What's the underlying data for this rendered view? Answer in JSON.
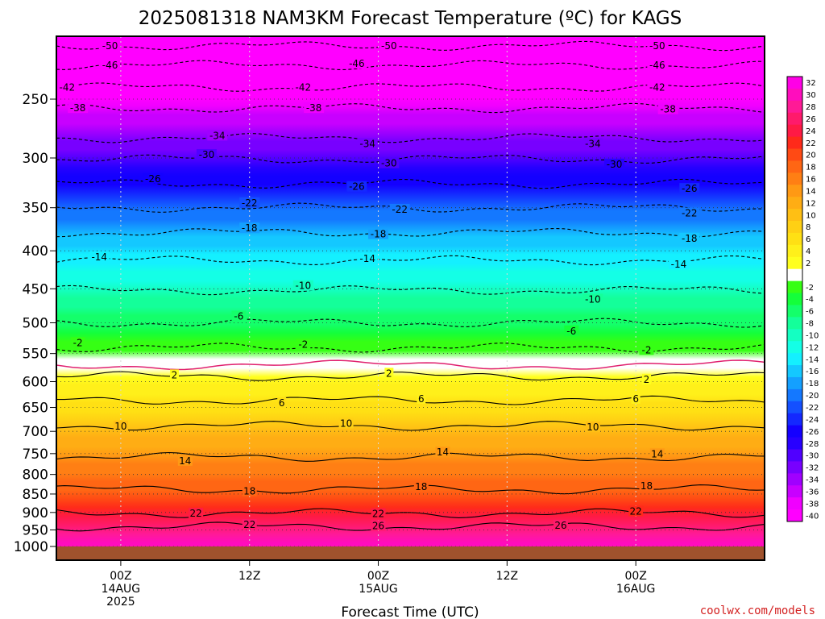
{
  "chart_data": {
    "type": "heatmap",
    "title": "2025081318 NAM3KM Forecast Temperature (ºC) for KAGS",
    "xlabel": "Forecast Time (UTC)",
    "ylabel": "",
    "y_scale": "log",
    "y_inverted": true,
    "y_ticks": [
      250,
      300,
      350,
      400,
      450,
      500,
      550,
      600,
      650,
      700,
      750,
      800,
      850,
      900,
      950,
      1000
    ],
    "y_range": [
      1000,
      200
    ],
    "x_start": "2025-08-13 18Z",
    "x_end": "2025-08-16 12Z",
    "x_ticks": [
      {
        "time": "2025-08-14 00Z",
        "lines": [
          "00Z",
          "14AUG",
          "2025"
        ]
      },
      {
        "time": "2025-08-14 12Z",
        "lines": [
          "12Z"
        ]
      },
      {
        "time": "2025-08-15 00Z",
        "lines": [
          "00Z",
          "15AUG"
        ]
      },
      {
        "time": "2025-08-15 12Z",
        "lines": [
          "12Z"
        ]
      },
      {
        "time": "2025-08-16 00Z",
        "lines": [
          "00Z",
          "16AUG"
        ]
      }
    ],
    "grid": true,
    "colorbar_ticks": [
      32,
      30,
      28,
      26,
      24,
      22,
      20,
      18,
      16,
      14,
      12,
      10,
      8,
      6,
      4,
      2,
      -2,
      -4,
      -6,
      -8,
      -10,
      -12,
      -14,
      -16,
      -18,
      -20,
      -22,
      -24,
      -26,
      -28,
      -30,
      -32,
      -34,
      -36,
      -38,
      -40
    ],
    "colorbar_placement": "right",
    "contour_labels": [
      {
        "time": "2025-08-13 23Z",
        "p": 212,
        "text": "-50"
      },
      {
        "time": "2025-08-15 01Z",
        "p": 212,
        "text": "-50"
      },
      {
        "time": "2025-08-16 02Z",
        "p": 212,
        "text": "-50"
      },
      {
        "time": "2025-08-13 23Z",
        "p": 225,
        "text": "-46"
      },
      {
        "time": "2025-08-14 22Z",
        "p": 224,
        "text": "-46"
      },
      {
        "time": "2025-08-16 02Z",
        "p": 225,
        "text": "-46"
      },
      {
        "time": "2025-08-13 19Z",
        "p": 241,
        "text": "-42"
      },
      {
        "time": "2025-08-14 17Z",
        "p": 241,
        "text": "-42"
      },
      {
        "time": "2025-08-16 02Z",
        "p": 241,
        "text": "-42"
      },
      {
        "time": "2025-08-13 20Z",
        "p": 257,
        "text": "-38"
      },
      {
        "time": "2025-08-14 18Z",
        "p": 257,
        "text": "-38"
      },
      {
        "time": "2025-08-16 03Z",
        "p": 258,
        "text": "-38"
      },
      {
        "time": "2025-08-14 09Z",
        "p": 280,
        "text": "-34"
      },
      {
        "time": "2025-08-14 23Z",
        "p": 287,
        "text": "-34"
      },
      {
        "time": "2025-08-15 20Z",
        "p": 287,
        "text": "-34"
      },
      {
        "time": "2025-08-14 08Z",
        "p": 297,
        "text": "-30"
      },
      {
        "time": "2025-08-15 01Z",
        "p": 305,
        "text": "-30"
      },
      {
        "time": "2025-08-15 22Z",
        "p": 306,
        "text": "-30"
      },
      {
        "time": "2025-08-14 03Z",
        "p": 320,
        "text": "-26"
      },
      {
        "time": "2025-08-14 22Z",
        "p": 328,
        "text": "-26"
      },
      {
        "time": "2025-08-16 05Z",
        "p": 330,
        "text": "-26"
      },
      {
        "time": "2025-08-14 12Z",
        "p": 345,
        "text": "-22"
      },
      {
        "time": "2025-08-15 02Z",
        "p": 352,
        "text": "-22"
      },
      {
        "time": "2025-08-16 05Z",
        "p": 356,
        "text": "-22"
      },
      {
        "time": "2025-08-14 12Z",
        "p": 373,
        "text": "-18"
      },
      {
        "time": "2025-08-15 00Z",
        "p": 380,
        "text": "-18"
      },
      {
        "time": "2025-08-16 05Z",
        "p": 385,
        "text": "-18"
      },
      {
        "time": "2025-08-13 22Z",
        "p": 408,
        "text": "-14"
      },
      {
        "time": "2025-08-14 23Z",
        "p": 410,
        "text": "-14"
      },
      {
        "time": "2025-08-16 04Z",
        "p": 417,
        "text": "-14"
      },
      {
        "time": "2025-08-14 17Z",
        "p": 446,
        "text": "-10"
      },
      {
        "time": "2025-08-15 20Z",
        "p": 465,
        "text": "-10"
      },
      {
        "time": "2025-08-14 11Z",
        "p": 490,
        "text": "-6"
      },
      {
        "time": "2025-08-15 18Z",
        "p": 513,
        "text": "-6"
      },
      {
        "time": "2025-08-13 20Z",
        "p": 532,
        "text": "-2"
      },
      {
        "time": "2025-08-14 17Z",
        "p": 535,
        "text": "-2"
      },
      {
        "time": "2025-08-16 01Z",
        "p": 544,
        "text": "-2"
      },
      {
        "time": "2025-08-14 05Z",
        "p": 588,
        "text": "2"
      },
      {
        "time": "2025-08-15 01Z",
        "p": 585,
        "text": "2"
      },
      {
        "time": "2025-08-16 01Z",
        "p": 596,
        "text": "2"
      },
      {
        "time": "2025-08-14 15Z",
        "p": 641,
        "text": "6"
      },
      {
        "time": "2025-08-15 04Z",
        "p": 633,
        "text": "6"
      },
      {
        "time": "2025-08-16 00Z",
        "p": 633,
        "text": "6"
      },
      {
        "time": "2025-08-14 00Z",
        "p": 689,
        "text": "10"
      },
      {
        "time": "2025-08-14 21Z",
        "p": 683,
        "text": "10"
      },
      {
        "time": "2025-08-15 20Z",
        "p": 691,
        "text": "10"
      },
      {
        "time": "2025-08-14 06Z",
        "p": 767,
        "text": "14"
      },
      {
        "time": "2025-08-15 06Z",
        "p": 747,
        "text": "14"
      },
      {
        "time": "2025-08-16 02Z",
        "p": 751,
        "text": "14"
      },
      {
        "time": "2025-08-14 12Z",
        "p": 843,
        "text": "18"
      },
      {
        "time": "2025-08-15 04Z",
        "p": 831,
        "text": "18"
      },
      {
        "time": "2025-08-16 01Z",
        "p": 829,
        "text": "18"
      },
      {
        "time": "2025-08-14 07Z",
        "p": 903,
        "text": "22"
      },
      {
        "time": "2025-08-15 00Z",
        "p": 904,
        "text": "22"
      },
      {
        "time": "2025-08-16 00Z",
        "p": 897,
        "text": "22"
      },
      {
        "time": "2025-08-14 12Z",
        "p": 935,
        "text": "22"
      },
      {
        "time": "2025-08-15 00Z",
        "p": 938,
        "text": "26"
      },
      {
        "time": "2025-08-15 17Z",
        "p": 937,
        "text": "26"
      }
    ]
  },
  "credit": "coolwx.com/models",
  "colors": {
    "freezing_line": "#e0206e",
    "ground": "#a0522d",
    "grid": "#d8d8d8"
  }
}
